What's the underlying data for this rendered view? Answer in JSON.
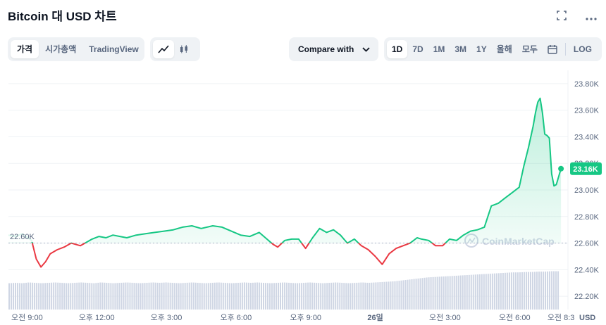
{
  "title": "Bitcoin 대 USD 차트",
  "icons": {
    "fullscreen": "expand-icon",
    "more": "more-icon"
  },
  "view_tabs": [
    "가격",
    "시가총액",
    "TradingView"
  ],
  "chart_style": [
    "line-chart-icon",
    "candlestick-icon"
  ],
  "compare_label": "Compare with",
  "ranges": [
    "1D",
    "7D",
    "1M",
    "3M",
    "1Y",
    "올해",
    "모두"
  ],
  "log_label": "LOG",
  "watermark": "CoinMarketCap",
  "colors": {
    "up": "#16c784",
    "down": "#ea3943",
    "grid": "#eff2f5",
    "text": "#58667e",
    "volume": "#cfd6e4"
  },
  "chart_data": {
    "type": "line",
    "ylim": [
      22.1,
      23.9
    ],
    "yticks": [
      {
        "v": 22.2,
        "label": "22.20K"
      },
      {
        "v": 22.4,
        "label": "22.40K"
      },
      {
        "v": 22.6,
        "label": "22.60K"
      },
      {
        "v": 22.8,
        "label": "22.80K"
      },
      {
        "v": 23.0,
        "label": "23.00K"
      },
      {
        "v": 23.2,
        "label": "23.20K"
      },
      {
        "v": 23.4,
        "label": "23.40K"
      },
      {
        "v": 23.6,
        "label": "23.60K"
      },
      {
        "v": 23.8,
        "label": "23.80K"
      }
    ],
    "xlim": [
      8.2,
      32.3
    ],
    "xticks": [
      {
        "v": 9,
        "label": "오전 9:00"
      },
      {
        "v": 12,
        "label": "오후 12:00"
      },
      {
        "v": 15,
        "label": "오후 3:00"
      },
      {
        "v": 18,
        "label": "오후 6:00"
      },
      {
        "v": 21,
        "label": "오후 9:00"
      },
      {
        "v": 24,
        "label": "26일"
      },
      {
        "v": 27,
        "label": "오전 3:00"
      },
      {
        "v": 30,
        "label": "오전 6:00"
      },
      {
        "v": 32.0,
        "label": "오전 8:3"
      }
    ],
    "baseline": 22.6,
    "baseline_label": "22.60K",
    "current": 23.16,
    "current_label": "23.16K",
    "currency_label": "USD",
    "x": [
      8.2,
      8.5,
      8.8,
      9.2,
      9.4,
      9.6,
      9.8,
      10.0,
      10.3,
      10.6,
      10.9,
      11.3,
      11.8,
      12.1,
      12.4,
      12.7,
      13.0,
      13.3,
      13.7,
      14.1,
      14.5,
      14.9,
      15.3,
      15.7,
      16.1,
      16.5,
      17.0,
      17.4,
      17.8,
      18.2,
      18.6,
      19.0,
      19.4,
      19.6,
      19.8,
      20.1,
      20.4,
      20.7,
      21.0,
      21.3,
      21.6,
      21.9,
      22.2,
      22.5,
      22.8,
      23.1,
      23.4,
      23.7,
      24.0,
      24.3,
      24.6,
      24.9,
      25.2,
      25.5,
      25.8,
      26.0,
      26.3,
      26.6,
      26.9,
      27.2,
      27.5,
      27.8,
      28.1,
      28.4,
      28.7,
      29.0,
      29.3,
      29.6,
      29.9,
      30.2,
      30.4,
      30.6,
      30.8,
      30.9,
      31.0,
      31.1,
      31.2,
      31.3,
      31.4,
      31.5,
      31.6,
      31.7,
      31.8,
      31.9,
      32.0
    ],
    "y": [
      22.66,
      22.65,
      22.67,
      22.62,
      22.48,
      22.42,
      22.46,
      22.52,
      22.55,
      22.57,
      22.6,
      22.58,
      22.63,
      22.65,
      22.64,
      22.66,
      22.65,
      22.64,
      22.66,
      22.67,
      22.68,
      22.69,
      22.7,
      22.72,
      22.73,
      22.71,
      22.73,
      22.72,
      22.69,
      22.66,
      22.65,
      22.68,
      22.62,
      22.59,
      22.57,
      22.62,
      22.63,
      22.63,
      22.56,
      22.64,
      22.71,
      22.68,
      22.7,
      22.66,
      22.6,
      22.63,
      22.58,
      22.55,
      22.5,
      22.44,
      22.52,
      22.56,
      22.58,
      22.6,
      22.64,
      22.63,
      22.62,
      22.58,
      22.58,
      22.63,
      22.62,
      22.66,
      22.69,
      22.7,
      22.72,
      22.88,
      22.9,
      22.94,
      22.98,
      23.02,
      23.18,
      23.32,
      23.48,
      23.58,
      23.66,
      23.69,
      23.58,
      23.42,
      23.41,
      23.39,
      23.12,
      23.03,
      23.04,
      23.1,
      23.16
    ],
    "volume": [
      0.68,
      0.69,
      0.68,
      0.7,
      0.69,
      0.68,
      0.69,
      0.7,
      0.69,
      0.68,
      0.69,
      0.7,
      0.69,
      0.68,
      0.7,
      0.69,
      0.68,
      0.69,
      0.7,
      0.69,
      0.68,
      0.69,
      0.7,
      0.69,
      0.7,
      0.69,
      0.68,
      0.69,
      0.7,
      0.69,
      0.68,
      0.69,
      0.7,
      0.69,
      0.68,
      0.69,
      0.7,
      0.69,
      0.7,
      0.69,
      0.68,
      0.69,
      0.7,
      0.69,
      0.68,
      0.69,
      0.7,
      0.69,
      0.68,
      0.69,
      0.7,
      0.69,
      0.68,
      0.69,
      0.7,
      0.69,
      0.7,
      0.71,
      0.72,
      0.73,
      0.75,
      0.77,
      0.79,
      0.81,
      0.83,
      0.84,
      0.85,
      0.86,
      0.87,
      0.88,
      0.89,
      0.9,
      0.91,
      0.92,
      0.93,
      0.94,
      0.95,
      0.96,
      0.96,
      0.97,
      0.97,
      0.98,
      0.98,
      0.99,
      0.99
    ]
  }
}
